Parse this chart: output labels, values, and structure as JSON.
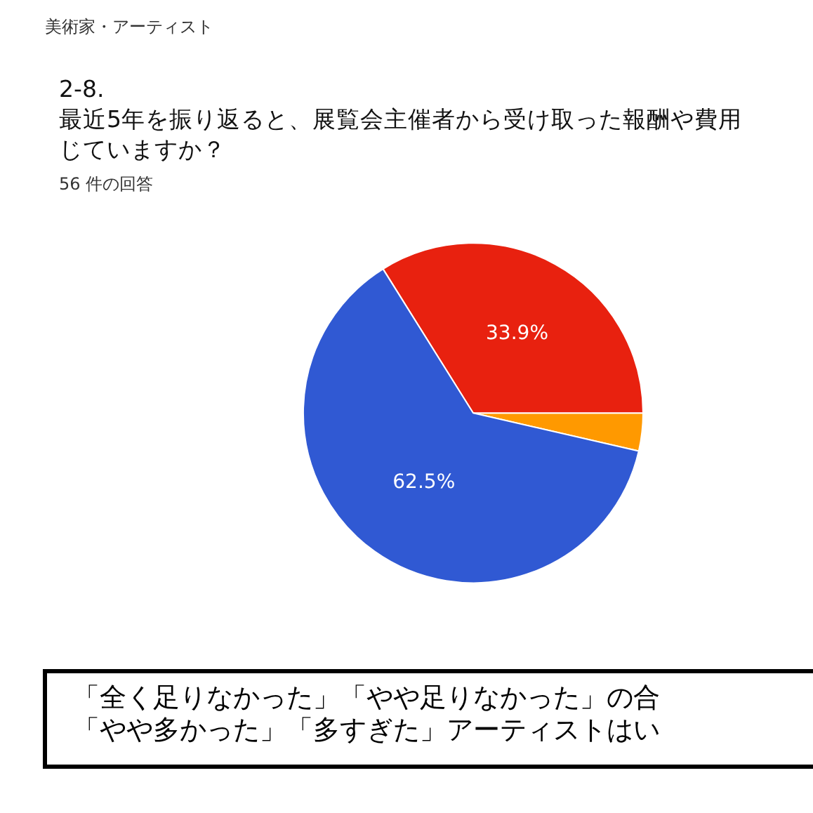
{
  "chart_data": {
    "type": "pie",
    "title": "2-8.\n最近5年を振り返ると、展覧会主催者から受け取った報酬や費用じていますか？",
    "subtitle": "56 件の回答",
    "annotations": [
      "美術家・アーティスト",
      "「全く足りなかった」「やや足りなかった」の合",
      "「やや多かった」「多すぎた」アーティストはい"
    ],
    "categories": [
      null,
      null,
      null
    ],
    "values": [
      3.6,
      33.9,
      62.5
    ],
    "colors": [
      "#ff9900",
      "#e8210f",
      "#3059d3"
    ],
    "value_labels": [
      null,
      "33.9%",
      "62.5%"
    ],
    "legend": false
  }
}
